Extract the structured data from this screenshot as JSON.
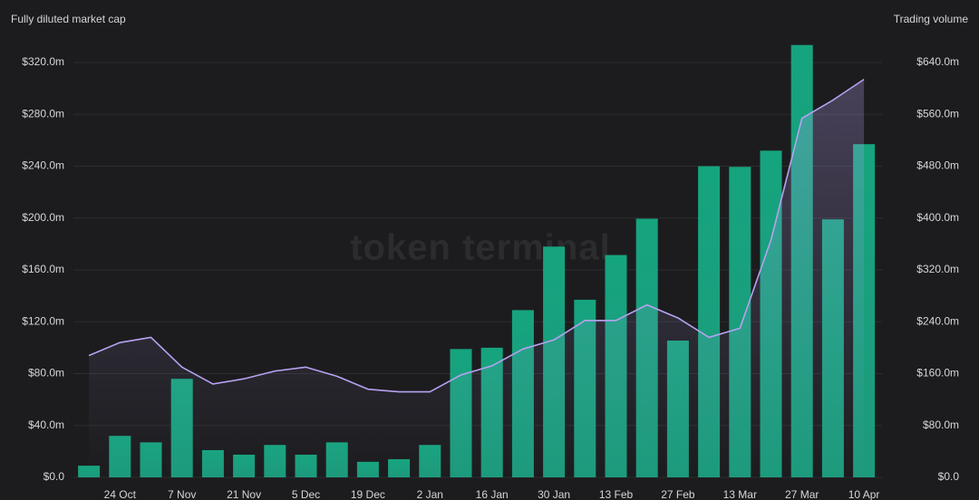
{
  "chart_data": {
    "type": "bar-line",
    "watermark": "token terminal",
    "categories": [
      null,
      "24 Oct",
      null,
      "7 Nov",
      null,
      "21 Nov",
      null,
      "5 Dec",
      null,
      "19 Dec",
      null,
      "2 Jan",
      null,
      "16 Jan",
      null,
      "30 Jan",
      null,
      "13 Feb",
      null,
      "27 Feb",
      null,
      "13 Mar",
      null,
      "27 Mar",
      null,
      "10 Apr"
    ],
    "series": [
      {
        "name": "Trading volume",
        "type": "bar",
        "axis": "y2",
        "color": "#1ea582",
        "values": [
          18,
          64,
          54,
          152,
          42,
          35,
          50,
          35,
          54,
          24,
          28,
          50,
          198,
          200,
          258,
          356,
          274,
          343,
          399,
          211,
          480,
          479,
          504,
          667,
          398,
          514
        ]
      },
      {
        "name": "Fully diluted market cap",
        "type": "line",
        "axis": "y",
        "color": "#b7a2f2",
        "values": [
          94,
          104,
          108,
          85,
          72,
          76,
          82,
          85,
          78,
          68,
          66,
          66,
          79,
          86,
          99,
          106,
          121,
          121,
          133,
          123,
          108,
          115,
          183,
          277,
          291,
          307
        ]
      }
    ],
    "ylim": [
      0,
      320
    ],
    "yticks": [
      {
        "value": 0,
        "label": "$0.0"
      },
      {
        "value": 40,
        "label": "$40.0m"
      },
      {
        "value": 80,
        "label": "$80.0m"
      },
      {
        "value": 120,
        "label": "$120.0m"
      },
      {
        "value": 160,
        "label": "$160.0m"
      },
      {
        "value": 200,
        "label": "$200.0m"
      },
      {
        "value": 240,
        "label": "$240.0m"
      },
      {
        "value": 280,
        "label": "$280.0m"
      },
      {
        "value": 320,
        "label": "$320.0m"
      }
    ],
    "y2lim": [
      0,
      640
    ],
    "y2ticks": [
      {
        "value": 0,
        "label": "$0.0"
      },
      {
        "value": 80,
        "label": "$80.0m"
      },
      {
        "value": 160,
        "label": "$160.0m"
      },
      {
        "value": 240,
        "label": "$240.0m"
      },
      {
        "value": 320,
        "label": "$320.0m"
      },
      {
        "value": 400,
        "label": "$400.0m"
      },
      {
        "value": 480,
        "label": "$480.0m"
      },
      {
        "value": 560,
        "label": "$560.0m"
      },
      {
        "value": 640,
        "label": "$640.0m"
      }
    ],
    "grid": true
  }
}
